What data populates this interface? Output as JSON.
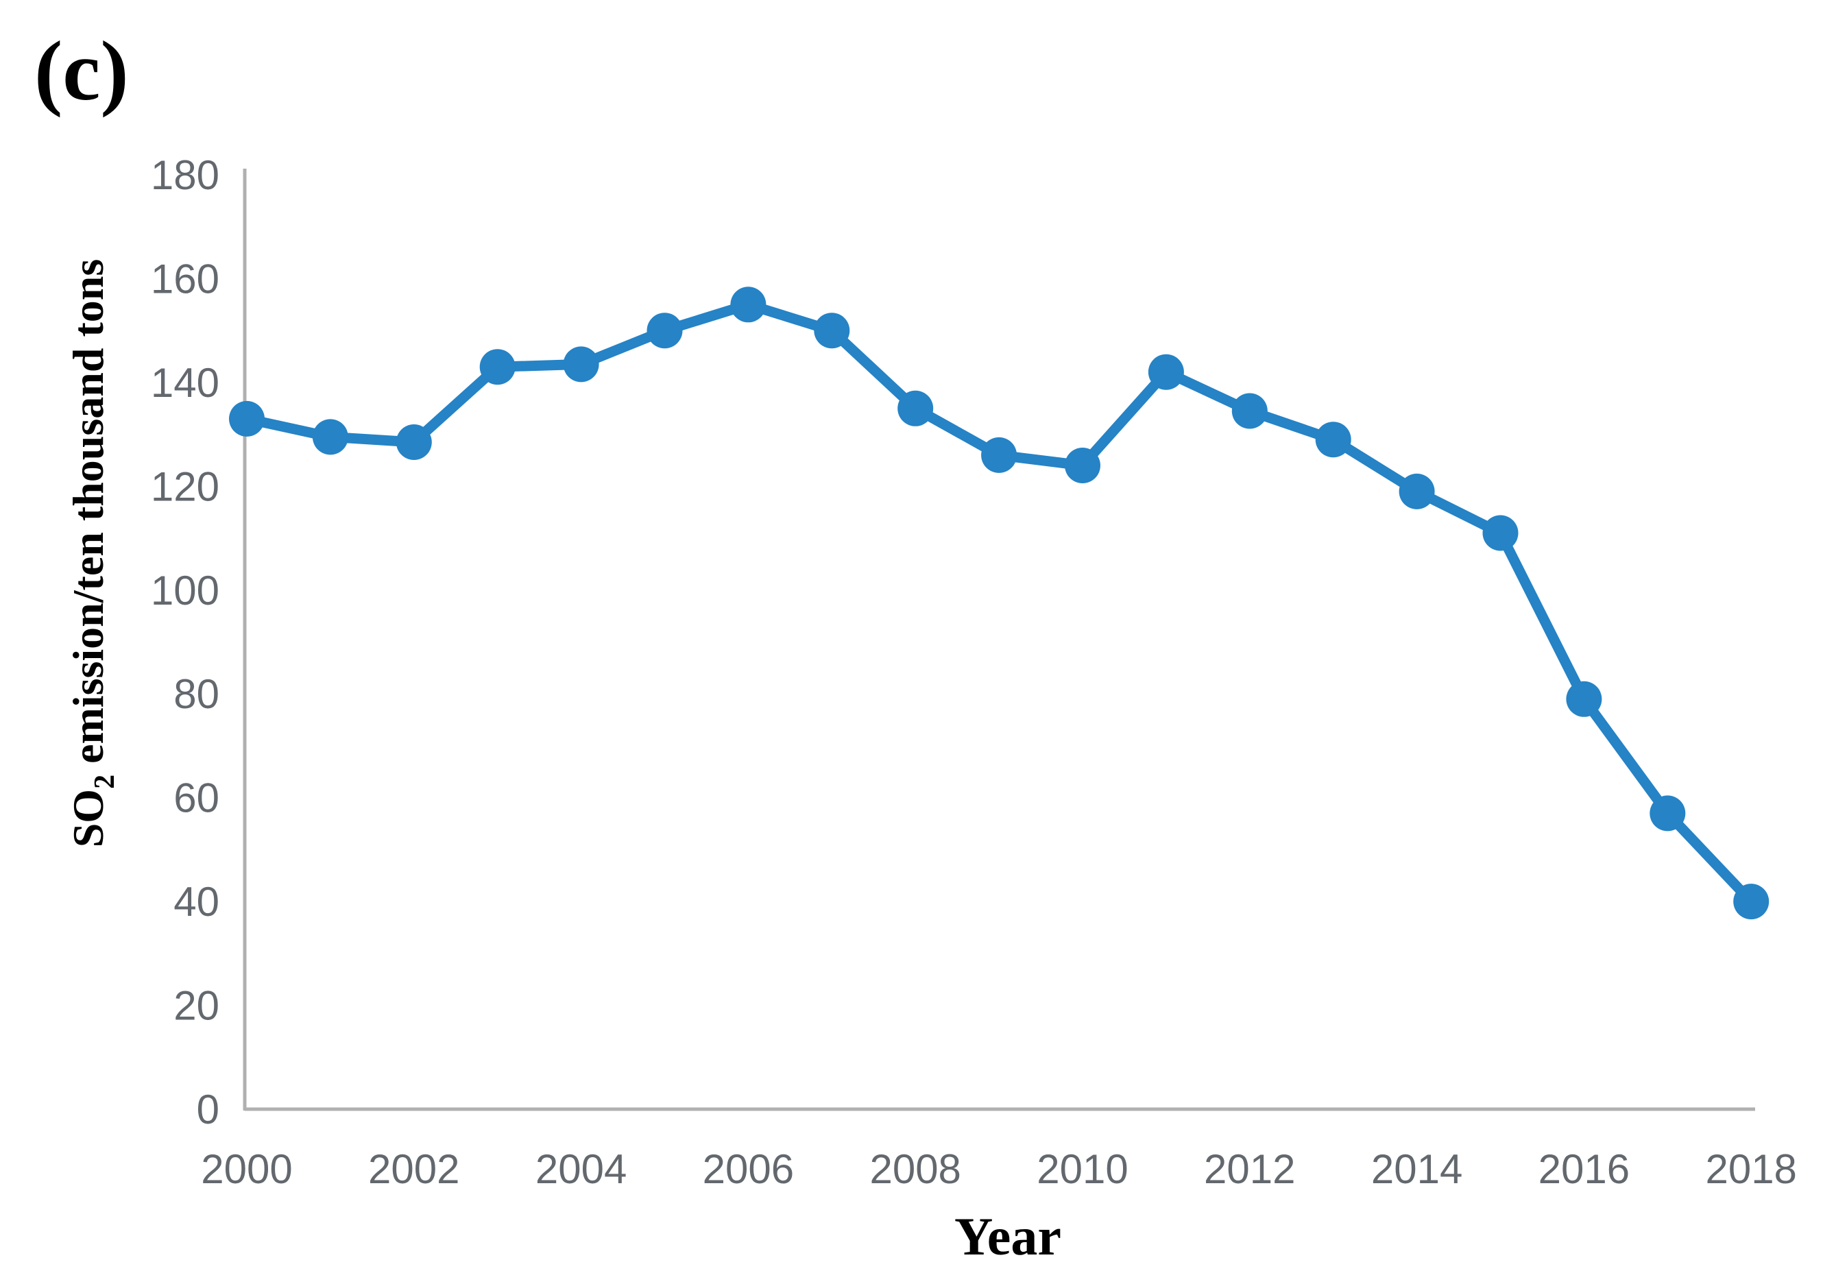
{
  "figure_label": "(c)",
  "chart_data": {
    "type": "line",
    "title": "",
    "xlabel": "Year",
    "ylabel": "SO2 emission/ten thousand tons",
    "ylabel_parts": {
      "prefix": "SO",
      "subscript": "2",
      "suffix": " emission/ten thousand tons"
    },
    "x": [
      2000,
      2001,
      2002,
      2003,
      2004,
      2005,
      2006,
      2007,
      2008,
      2009,
      2010,
      2011,
      2012,
      2013,
      2014,
      2015,
      2016,
      2017,
      2018
    ],
    "series": [
      {
        "name": "SO2 emission",
        "values": [
          133,
          129.5,
          128.5,
          143,
          143.5,
          150,
          155,
          150,
          135,
          126,
          124,
          142,
          134.5,
          129,
          119,
          111,
          79,
          57,
          40
        ]
      }
    ],
    "xticks": [
      2000,
      2002,
      2004,
      2006,
      2008,
      2010,
      2012,
      2014,
      2016,
      2018
    ],
    "ylim": [
      0,
      180
    ],
    "ytick_step": 20,
    "grid": false,
    "legend_position": "none",
    "marker": "circle",
    "colors": {
      "line": "#2583c6",
      "marker": "#2583c6",
      "axis": "#b0b0b0",
      "tick_text": "#63686e",
      "label_text": "#000000"
    }
  }
}
